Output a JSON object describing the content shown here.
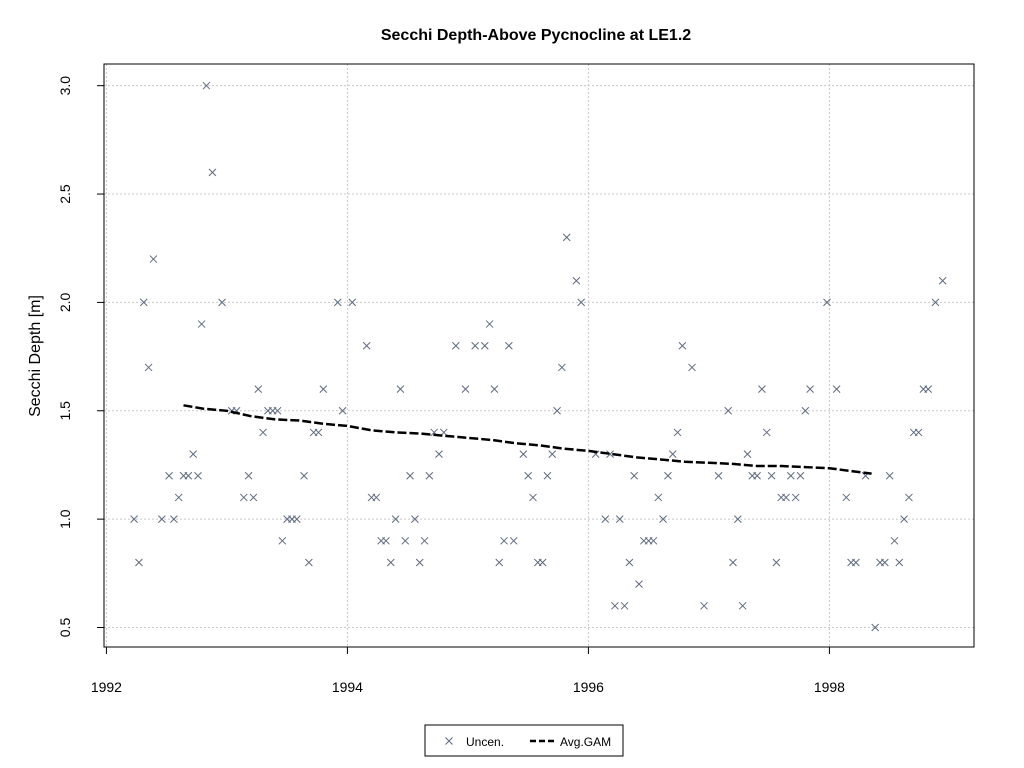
{
  "chart_data": {
    "type": "scatter",
    "title": "Secchi Depth-Above Pycnocline at LE1.2",
    "xlabel": "",
    "ylabel": "Secchi Depth [m]",
    "xlim": [
      1991.98,
      1999.2
    ],
    "ylim": [
      0.41,
      3.1
    ],
    "xticks": [
      1992,
      1994,
      1996,
      1998
    ],
    "yticks": [
      0.5,
      1.0,
      1.5,
      2.0,
      2.5,
      3.0
    ],
    "xtick_labels": [
      "1992",
      "1994",
      "1996",
      "1998"
    ],
    "ytick_labels": [
      "0.5",
      "1.0",
      "1.5",
      "2.0",
      "2.5",
      "3.0"
    ],
    "grid": true,
    "legend_position": "bottom-center",
    "series": [
      {
        "name": "Uncen.",
        "kind": "points",
        "marker": "x",
        "color": "#5f6b80",
        "points": [
          [
            1992.23,
            1.0
          ],
          [
            1992.27,
            0.8
          ],
          [
            1992.31,
            2.0
          ],
          [
            1992.35,
            1.7
          ],
          [
            1992.39,
            2.2
          ],
          [
            1992.46,
            1.0
          ],
          [
            1992.52,
            1.2
          ],
          [
            1992.56,
            1.0
          ],
          [
            1992.6,
            1.1
          ],
          [
            1992.64,
            1.2
          ],
          [
            1992.68,
            1.2
          ],
          [
            1992.72,
            1.3
          ],
          [
            1992.76,
            1.2
          ],
          [
            1992.79,
            1.9
          ],
          [
            1992.83,
            3.0
          ],
          [
            1992.88,
            2.6
          ],
          [
            1992.96,
            2.0
          ],
          [
            1993.04,
            1.5
          ],
          [
            1993.08,
            1.5
          ],
          [
            1993.14,
            1.1
          ],
          [
            1993.18,
            1.2
          ],
          [
            1993.22,
            1.1
          ],
          [
            1993.26,
            1.6
          ],
          [
            1993.3,
            1.4
          ],
          [
            1993.34,
            1.5
          ],
          [
            1993.38,
            1.5
          ],
          [
            1993.42,
            1.5
          ],
          [
            1993.46,
            0.9
          ],
          [
            1993.5,
            1.0
          ],
          [
            1993.54,
            1.0
          ],
          [
            1993.58,
            1.0
          ],
          [
            1993.64,
            1.2
          ],
          [
            1993.68,
            0.8
          ],
          [
            1993.72,
            1.4
          ],
          [
            1993.76,
            1.4
          ],
          [
            1993.8,
            1.6
          ],
          [
            1993.92,
            2.0
          ],
          [
            1993.96,
            1.5
          ],
          [
            1994.04,
            2.0
          ],
          [
            1994.16,
            1.8
          ],
          [
            1994.2,
            1.1
          ],
          [
            1994.24,
            1.1
          ],
          [
            1994.28,
            0.9
          ],
          [
            1994.32,
            0.9
          ],
          [
            1994.36,
            0.8
          ],
          [
            1994.4,
            1.0
          ],
          [
            1994.44,
            1.6
          ],
          [
            1994.48,
            0.9
          ],
          [
            1994.52,
            1.2
          ],
          [
            1994.56,
            1.0
          ],
          [
            1994.6,
            0.8
          ],
          [
            1994.64,
            0.9
          ],
          [
            1994.68,
            1.2
          ],
          [
            1994.72,
            1.4
          ],
          [
            1994.76,
            1.3
          ],
          [
            1994.8,
            1.4
          ],
          [
            1994.9,
            1.8
          ],
          [
            1994.98,
            1.6
          ],
          [
            1995.06,
            1.8
          ],
          [
            1995.14,
            1.8
          ],
          [
            1995.18,
            1.9
          ],
          [
            1995.22,
            1.6
          ],
          [
            1995.26,
            0.8
          ],
          [
            1995.3,
            0.9
          ],
          [
            1995.34,
            1.8
          ],
          [
            1995.38,
            0.9
          ],
          [
            1995.46,
            1.3
          ],
          [
            1995.5,
            1.2
          ],
          [
            1995.54,
            1.1
          ],
          [
            1995.58,
            0.8
          ],
          [
            1995.62,
            0.8
          ],
          [
            1995.66,
            1.2
          ],
          [
            1995.7,
            1.3
          ],
          [
            1995.74,
            1.5
          ],
          [
            1995.78,
            1.7
          ],
          [
            1995.82,
            2.3
          ],
          [
            1995.9,
            2.1
          ],
          [
            1995.94,
            2.0
          ],
          [
            1996.06,
            1.3
          ],
          [
            1996.14,
            1.0
          ],
          [
            1996.18,
            1.3
          ],
          [
            1996.22,
            0.6
          ],
          [
            1996.26,
            1.0
          ],
          [
            1996.3,
            0.6
          ],
          [
            1996.34,
            0.8
          ],
          [
            1996.38,
            1.2
          ],
          [
            1996.42,
            0.7
          ],
          [
            1996.46,
            0.9
          ],
          [
            1996.5,
            0.9
          ],
          [
            1996.54,
            0.9
          ],
          [
            1996.58,
            1.1
          ],
          [
            1996.62,
            1.0
          ],
          [
            1996.66,
            1.2
          ],
          [
            1996.7,
            1.3
          ],
          [
            1996.74,
            1.4
          ],
          [
            1996.78,
            1.8
          ],
          [
            1996.86,
            1.7
          ],
          [
            1996.96,
            0.6
          ],
          [
            1997.08,
            1.2
          ],
          [
            1997.16,
            1.5
          ],
          [
            1997.2,
            0.8
          ],
          [
            1997.24,
            1.0
          ],
          [
            1997.28,
            0.6
          ],
          [
            1997.32,
            1.3
          ],
          [
            1997.36,
            1.2
          ],
          [
            1997.4,
            1.2
          ],
          [
            1997.44,
            1.6
          ],
          [
            1997.48,
            1.4
          ],
          [
            1997.52,
            1.2
          ],
          [
            1997.56,
            0.8
          ],
          [
            1997.6,
            1.1
          ],
          [
            1997.64,
            1.1
          ],
          [
            1997.68,
            1.2
          ],
          [
            1997.72,
            1.1
          ],
          [
            1997.76,
            1.2
          ],
          [
            1997.8,
            1.5
          ],
          [
            1997.84,
            1.6
          ],
          [
            1997.98,
            2.0
          ],
          [
            1998.06,
            1.6
          ],
          [
            1998.14,
            1.1
          ],
          [
            1998.18,
            0.8
          ],
          [
            1998.22,
            0.8
          ],
          [
            1998.3,
            1.2
          ],
          [
            1998.38,
            0.5
          ],
          [
            1998.42,
            0.8
          ],
          [
            1998.46,
            0.8
          ],
          [
            1998.5,
            1.2
          ],
          [
            1998.54,
            0.9
          ],
          [
            1998.58,
            0.8
          ],
          [
            1998.62,
            1.0
          ],
          [
            1998.66,
            1.1
          ],
          [
            1998.7,
            1.4
          ],
          [
            1998.74,
            1.4
          ],
          [
            1998.78,
            1.6
          ],
          [
            1998.82,
            1.6
          ],
          [
            1998.88,
            2.0
          ],
          [
            1998.94,
            2.1
          ]
        ]
      },
      {
        "name": "Avg.GAM",
        "kind": "line",
        "dash": "dashed",
        "color": "#000000",
        "points": [
          [
            1992.64,
            1.525
          ],
          [
            1992.8,
            1.51
          ],
          [
            1993.0,
            1.5
          ],
          [
            1993.2,
            1.475
          ],
          [
            1993.4,
            1.46
          ],
          [
            1993.6,
            1.455
          ],
          [
            1993.8,
            1.44
          ],
          [
            1994.0,
            1.43
          ],
          [
            1994.2,
            1.41
          ],
          [
            1994.4,
            1.4
          ],
          [
            1994.6,
            1.395
          ],
          [
            1994.8,
            1.385
          ],
          [
            1995.0,
            1.375
          ],
          [
            1995.2,
            1.365
          ],
          [
            1995.4,
            1.35
          ],
          [
            1995.6,
            1.34
          ],
          [
            1995.8,
            1.325
          ],
          [
            1996.0,
            1.315
          ],
          [
            1996.2,
            1.3
          ],
          [
            1996.4,
            1.285
          ],
          [
            1996.6,
            1.275
          ],
          [
            1996.8,
            1.265
          ],
          [
            1997.0,
            1.26
          ],
          [
            1997.2,
            1.255
          ],
          [
            1997.4,
            1.245
          ],
          [
            1997.6,
            1.245
          ],
          [
            1997.8,
            1.24
          ],
          [
            1998.0,
            1.235
          ],
          [
            1998.2,
            1.22
          ],
          [
            1998.35,
            1.21
          ]
        ]
      }
    ]
  }
}
